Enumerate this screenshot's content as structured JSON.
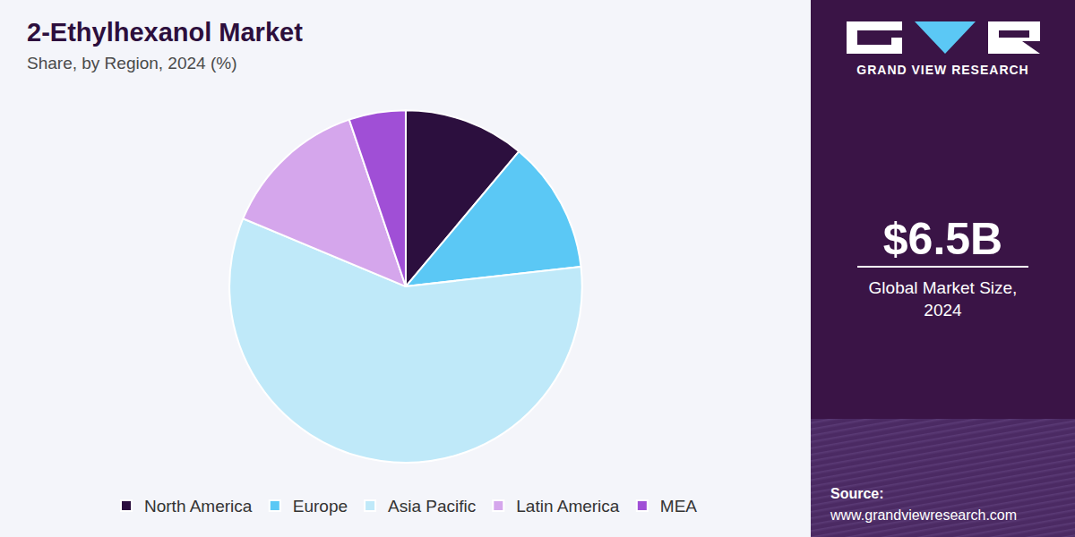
{
  "chart_data": {
    "type": "pie",
    "title": "2-Ethylhexanol Market",
    "subtitle": "Share, by Region, 2024 (%)",
    "categories": [
      "North America",
      "Europe",
      "Asia Pacific",
      "Latin America",
      "MEA"
    ],
    "values": [
      11.1,
      12.1,
      58.1,
      13.5,
      5.2
    ],
    "colors": [
      "#2c0f3e",
      "#5bc8f5",
      "#bfe9f9",
      "#d5a6ec",
      "#a04fd6"
    ],
    "legend": "bottom"
  },
  "brand": "GRAND VIEW RESEARCH",
  "market_size": {
    "value": "$6.5B",
    "label_lines": [
      "Global Market Size,",
      "2024"
    ]
  },
  "source": {
    "label": "Source:",
    "url": "www.grandviewresearch.com"
  }
}
